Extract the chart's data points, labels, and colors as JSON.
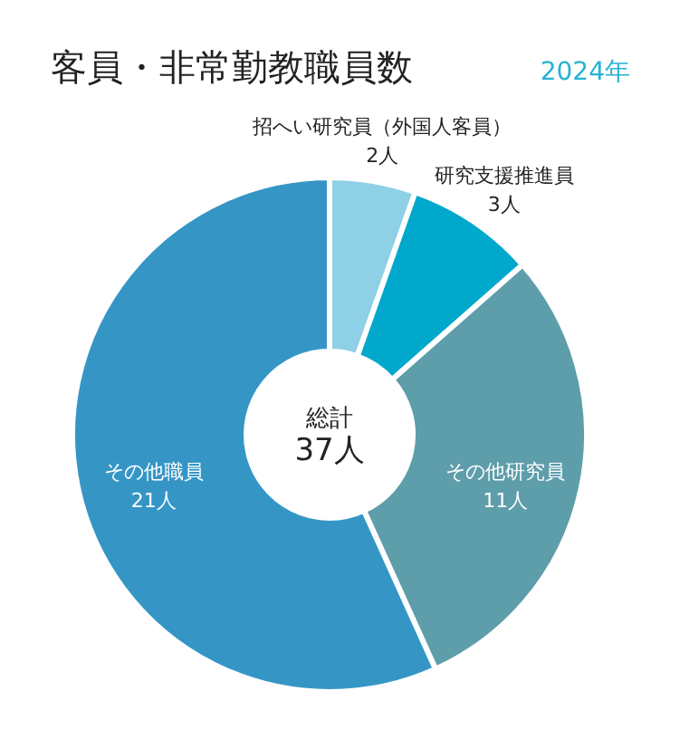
{
  "chart_data": {
    "type": "donut",
    "title": "客員・非常勤教職員数",
    "subtitle": "2024年",
    "categories": [
      "招へい研究員（外国人客員）",
      "研究支援推進員",
      "その他研究員",
      "その他職員"
    ],
    "values": [
      2,
      3,
      11,
      21
    ],
    "value_labels": [
      "2人",
      "3人",
      "11人",
      "21人"
    ],
    "colors": [
      "#8ed0e6",
      "#00a8cc",
      "#5e9eab",
      "#3596c6"
    ],
    "annotations": [
      "総計",
      "37人"
    ]
  }
}
